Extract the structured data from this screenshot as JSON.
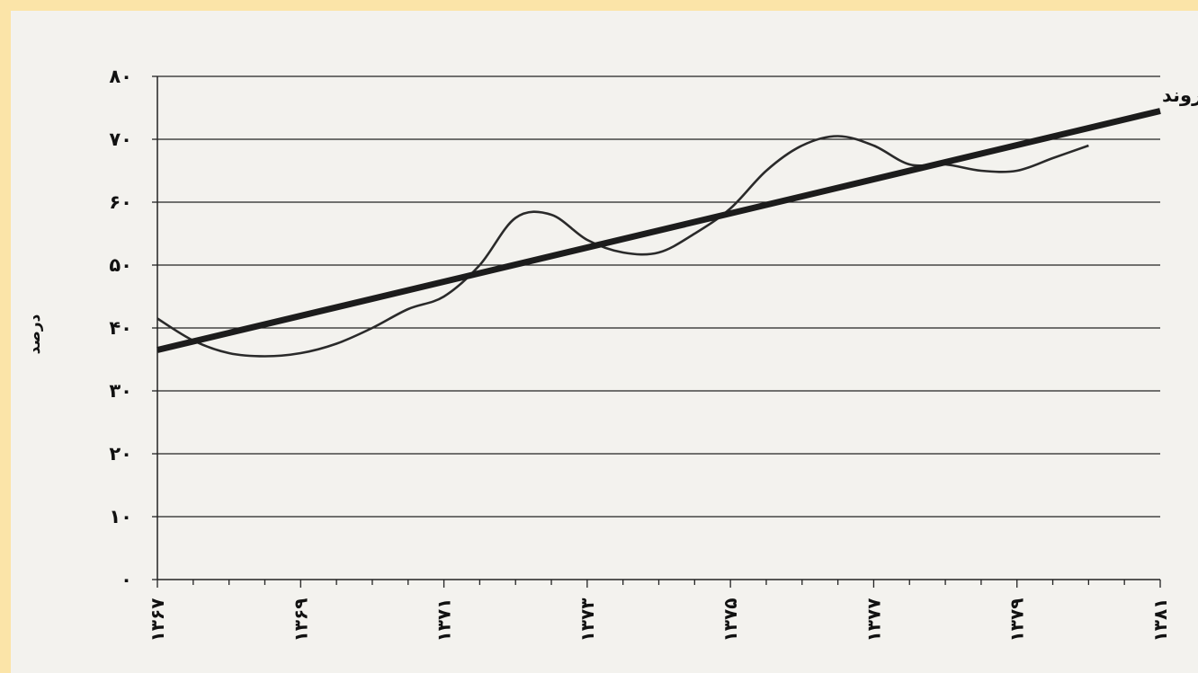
{
  "chart_data": {
    "type": "line",
    "title": "",
    "xlabel": "",
    "ylabel": "درصد",
    "annotation": "خط روند",
    "ylim": [
      0,
      80
    ],
    "y_ticks": [
      0,
      10,
      20,
      30,
      40,
      50,
      60,
      70,
      80
    ],
    "y_tick_labels": [
      "۰",
      "۱۰",
      "۲۰",
      "۳۰",
      "۴۰",
      "۵۰",
      "۶۰",
      "۷۰",
      "۸۰"
    ],
    "xlim": [
      1367,
      1381
    ],
    "x_ticks": [
      1367,
      1369,
      1371,
      1373,
      1375,
      1377,
      1379,
      1381
    ],
    "x_tick_labels": [
      "۱۳۶۷",
      "۱۳۶۹",
      "۱۳۷۱",
      "۱۳۷۳",
      "۱۳۷۵",
      "۱۳۷۷",
      "۱۳۷۹",
      "۱۳۸۱"
    ],
    "grid": "horizontal",
    "series": [
      {
        "x": [
          1367,
          1367.5,
          1368,
          1368.5,
          1369,
          1369.5,
          1370,
          1370.5,
          1371,
          1371.5,
          1372,
          1372.5,
          1373,
          1373.5,
          1374,
          1374.5,
          1375,
          1375.5,
          1376,
          1376.5,
          1377,
          1377.5,
          1378,
          1378.5,
          1379,
          1379.5,
          1380
        ],
        "values": [
          41.5,
          38,
          36,
          35.5,
          36,
          37.5,
          40,
          43,
          45,
          50,
          57.5,
          58,
          54,
          52,
          52,
          55,
          59,
          65,
          69,
          70.5,
          69,
          66,
          66,
          65,
          65,
          67,
          69
        ],
        "color": "#2a2a2a"
      },
      {
        "x": [
          1367,
          1381
        ],
        "values": [
          36.5,
          74.5
        ],
        "color": "#1c1c1c"
      }
    ]
  }
}
